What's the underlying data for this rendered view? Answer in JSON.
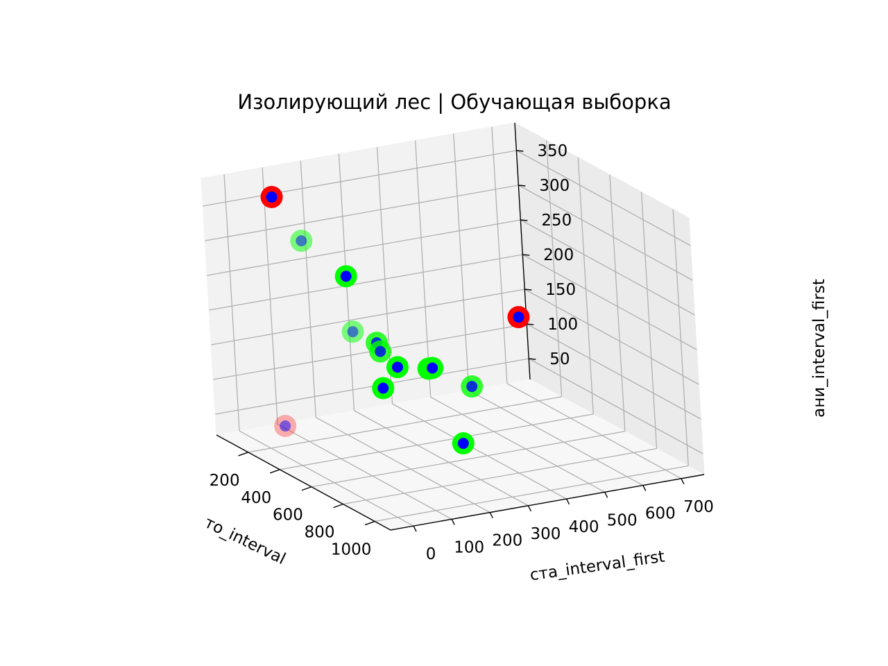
{
  "chart_data": {
    "type": "scatter",
    "projection": "3d",
    "title": "Изолирующий лес | Обучающая выборка",
    "xlabel": "то_interval",
    "ylabel": "ста_interval_first",
    "zlabel": "ани_interval_first",
    "x_ticks": [
      "200",
      "400",
      "600",
      "800",
      "1000"
    ],
    "y_ticks": [
      "0",
      "100",
      "200",
      "300",
      "400",
      "500",
      "600",
      "700"
    ],
    "z_ticks": [
      "50",
      "100",
      "150",
      "200",
      "250",
      "300",
      "350"
    ],
    "xlim": [
      0,
      1100
    ],
    "ylim": [
      -60,
      760
    ],
    "zlim": [
      20,
      390
    ],
    "grid": true,
    "colors": {
      "inlier_ring": "#00ff00",
      "outlier_ring": "#ff0000",
      "point": "#0000ff"
    },
    "points": [
      {
        "x": 150,
        "y": 60,
        "z": 370,
        "label": "outlier",
        "alpha": 1.0
      },
      {
        "x": 150,
        "y": 130,
        "z": 300,
        "label": "inlier",
        "alpha": 0.5
      },
      {
        "x": 350,
        "y": 170,
        "z": 190,
        "label": "inlier",
        "alpha": 0.5
      },
      {
        "x": 150,
        "y": 60,
        "z": 40,
        "label": "outlier",
        "alpha": 0.3
      },
      {
        "x": 100,
        "y": 260,
        "z": 230,
        "label": "inlier",
        "alpha": 1.0
      },
      {
        "x": 300,
        "y": 250,
        "z": 160,
        "label": "inlier",
        "alpha": 0.8
      },
      {
        "x": 320,
        "y": 250,
        "z": 150,
        "label": "inlier",
        "alpha": 0.8
      },
      {
        "x": 400,
        "y": 220,
        "z": 110,
        "label": "inlier",
        "alpha": 1.0
      },
      {
        "x": 300,
        "y": 300,
        "z": 120,
        "label": "inlier",
        "alpha": 1.0
      },
      {
        "x": 300,
        "y": 380,
        "z": 110,
        "label": "inlier",
        "alpha": 1.0
      },
      {
        "x": 300,
        "y": 390,
        "z": 110,
        "label": "inlier",
        "alpha": 1.0
      },
      {
        "x": 400,
        "y": 450,
        "z": 90,
        "label": "inlier",
        "alpha": 0.8
      },
      {
        "x": 700,
        "y": 300,
        "z": 60,
        "label": "inlier",
        "alpha": 1.0
      },
      {
        "x": 50,
        "y": 720,
        "z": 120,
        "label": "outlier",
        "alpha": 1.0
      }
    ]
  }
}
